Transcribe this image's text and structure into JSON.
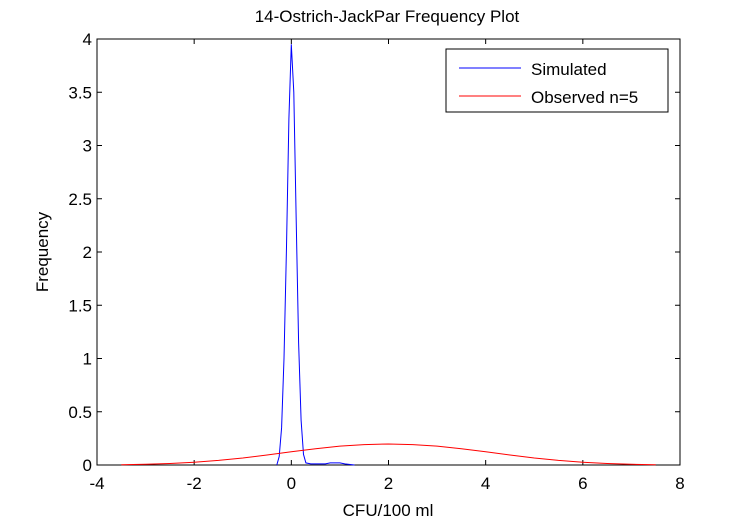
{
  "chart_data": {
    "type": "line",
    "title": "14-Ostrich-JackPar Frequency Plot",
    "xlabel": "CFU/100 ml",
    "ylabel": "Frequency",
    "xlim": [
      -4,
      8
    ],
    "ylim": [
      0,
      4
    ],
    "xticks": [
      "-4",
      "-2",
      "0",
      "2",
      "4",
      "6",
      "8"
    ],
    "yticks": [
      "0",
      "0.5",
      "1",
      "1.5",
      "2",
      "2.5",
      "3",
      "3.5",
      "4"
    ],
    "grid": false,
    "legend": "top-right",
    "series": [
      {
        "name": "Simulated",
        "color": "#0000ff",
        "x": [
          -0.3,
          -0.25,
          -0.2,
          -0.15,
          -0.1,
          -0.05,
          0.0,
          0.05,
          0.1,
          0.15,
          0.2,
          0.25,
          0.3,
          0.4,
          0.5,
          0.6,
          0.7,
          0.8,
          0.9,
          1.0,
          1.1,
          1.3
        ],
        "y": [
          0.0,
          0.08,
          0.35,
          1.0,
          2.05,
          3.25,
          3.95,
          3.5,
          2.3,
          1.15,
          0.42,
          0.1,
          0.02,
          0.01,
          0.01,
          0.01,
          0.01,
          0.02,
          0.02,
          0.02,
          0.01,
          0.0
        ]
      },
      {
        "name": "Observed n=5",
        "color": "#ff0000",
        "x": [
          -3.5,
          -3.0,
          -2.5,
          -2.0,
          -1.5,
          -1.0,
          -0.5,
          0.0,
          0.5,
          1.0,
          1.5,
          2.0,
          2.5,
          3.0,
          3.5,
          4.0,
          4.5,
          5.0,
          5.5,
          6.0,
          6.5,
          7.0,
          7.5
        ],
        "y": [
          0.003,
          0.007,
          0.014,
          0.026,
          0.043,
          0.066,
          0.094,
          0.124,
          0.153,
          0.177,
          0.192,
          0.197,
          0.192,
          0.177,
          0.153,
          0.124,
          0.094,
          0.066,
          0.043,
          0.026,
          0.014,
          0.007,
          0.003
        ]
      }
    ]
  }
}
